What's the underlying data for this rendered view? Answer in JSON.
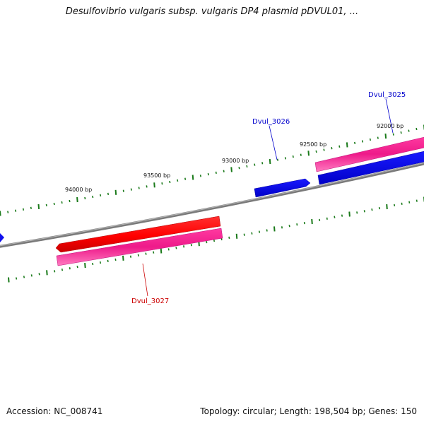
{
  "title": "Desulfovibrio vulgaris subsp. vulgaris DP4 plasmid pDVUL01, ...",
  "ticks": [
    {
      "label": "94000 bp"
    },
    {
      "label": "93500 bp"
    },
    {
      "label": "93000 bp"
    },
    {
      "label": "92500 bp"
    },
    {
      "label": "92000 bp"
    }
  ],
  "genes": [
    {
      "name": "Dvul_3025",
      "color": "#0000cc"
    },
    {
      "name": "Dvul_3026",
      "color": "#0000cc"
    },
    {
      "name": "Dvul_3027",
      "color": "#cc0000"
    }
  ],
  "colors": {
    "backbone": "#7a7a7a",
    "tick": "#1a7a1a",
    "forward_gene": "#ff1a1a",
    "reverse_gene": "#0a0aee",
    "cds_pink": "#ee2299"
  },
  "footer": {
    "accession": "Accession: NC_008741",
    "stats": "Topology: circular; Length: 198,504 bp; Genes: 150"
  }
}
